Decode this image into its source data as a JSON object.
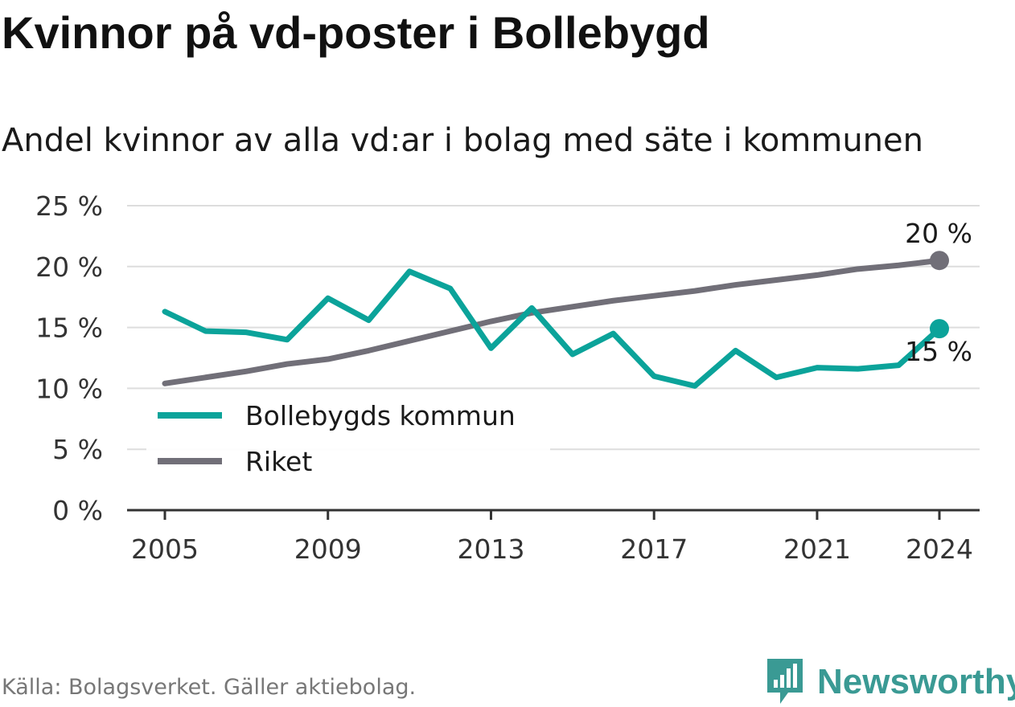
{
  "header": {
    "title": "Kvinnor på vd-poster i Bollebygd",
    "subtitle": "Andel kvinnor av alla vd:ar i bolag med säte i kommunen"
  },
  "footer": {
    "source": "Källa: Bolagsverket. Gäller aktiebolag.",
    "brand": "Newsworthy"
  },
  "chart_data": {
    "type": "line",
    "title": "Kvinnor på vd-poster i Bollebygd",
    "subtitle": "Andel kvinnor av alla vd:ar i bolag med säte i kommunen",
    "x": [
      2005,
      2006,
      2007,
      2008,
      2009,
      2010,
      2011,
      2012,
      2013,
      2014,
      2015,
      2016,
      2017,
      2018,
      2019,
      2020,
      2021,
      2022,
      2023,
      2024
    ],
    "x_ticks": [
      2005,
      2009,
      2013,
      2017,
      2021,
      2024
    ],
    "x_tick_labels": [
      "2005",
      "2009",
      "2013",
      "2017",
      "2021",
      "2024"
    ],
    "xlim": [
      2004,
      2025
    ],
    "ylim": [
      0,
      25
    ],
    "y_ticks": [
      0,
      5,
      10,
      15,
      20,
      25
    ],
    "y_tick_labels": [
      "0 %",
      "5 %",
      "10 %",
      "15 %",
      "20 %",
      "25 %"
    ],
    "grid": true,
    "legend_position": "bottom-left",
    "series": [
      {
        "name": "Bollebygds kommun",
        "color": "#0ba39a",
        "values": [
          16.3,
          14.7,
          14.6,
          14.0,
          17.4,
          15.6,
          19.6,
          18.2,
          13.3,
          16.6,
          12.8,
          14.5,
          11.0,
          10.2,
          13.1,
          10.9,
          11.7,
          11.6,
          11.9,
          14.9
        ],
        "end_label": "15 %"
      },
      {
        "name": "Riket",
        "color": "#716f78",
        "values": [
          10.4,
          10.9,
          11.4,
          12.0,
          12.4,
          13.1,
          13.9,
          14.7,
          15.5,
          16.2,
          16.7,
          17.2,
          17.6,
          18.0,
          18.5,
          18.9,
          19.3,
          19.8,
          20.1,
          20.5
        ],
        "end_label": "20 %"
      }
    ]
  }
}
